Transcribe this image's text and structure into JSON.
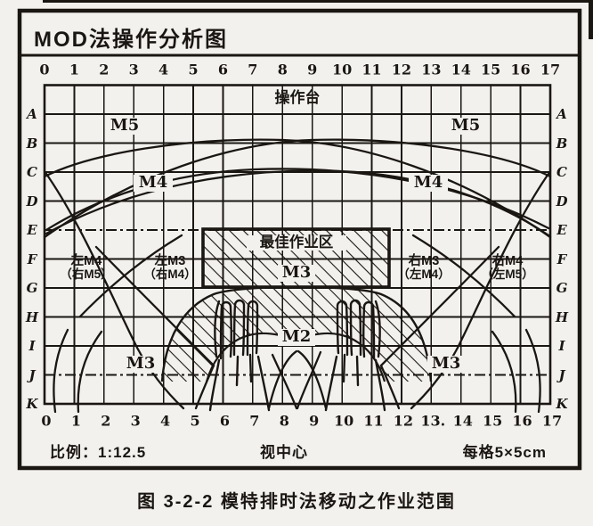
{
  "page": {
    "bg": "#f3f1ee",
    "ink": "#1a1713"
  },
  "title": "MOD法操作分析图",
  "grid": {
    "top_ticks": [
      "0",
      "1",
      "2",
      "3",
      "4",
      "5",
      "6",
      "7",
      "8",
      "9",
      "10",
      "11",
      "12",
      "13",
      "14",
      "15",
      "16",
      "17"
    ],
    "bottom_ticks": [
      "0",
      "1",
      "2",
      "3",
      "4",
      "5",
      "6",
      "7",
      "8",
      "9",
      "10",
      "11",
      "12",
      "13.",
      "14",
      "15",
      "16",
      "17"
    ],
    "left_rows": [
      "A",
      "B",
      "C",
      "D",
      "E",
      "F",
      "G",
      "H",
      "I",
      "J",
      "K"
    ],
    "right_rows": [
      "A",
      "B",
      "C",
      "D",
      "E",
      "F",
      "G",
      "H",
      "I",
      "J",
      "K"
    ]
  },
  "zones": {
    "operation_table": "操作台",
    "m5_left": "M5",
    "m5_right": "M5",
    "m4_left": "M4",
    "m4_right": "M4",
    "left_m4": "左M4",
    "left_m4_alt": "（右M5）",
    "left_m3": "左M3",
    "left_m3_alt": "（右M4）",
    "right_m3": "右M3",
    "right_m3_alt": "（左M4）",
    "right_m4": "右M4",
    "right_m4_alt": "（左M5）",
    "best_zone": "最佳作业区",
    "m3_center": "M3",
    "m2": "M2",
    "m3_bottom_left": "M3",
    "m3_bottom_right": "M3"
  },
  "footer": {
    "scale": "比例：1:12.5",
    "view_center": "视中心",
    "cell_size": "每格5×5cm"
  },
  "caption": "图 3-2-2  模特排时法移动之作业范围"
}
